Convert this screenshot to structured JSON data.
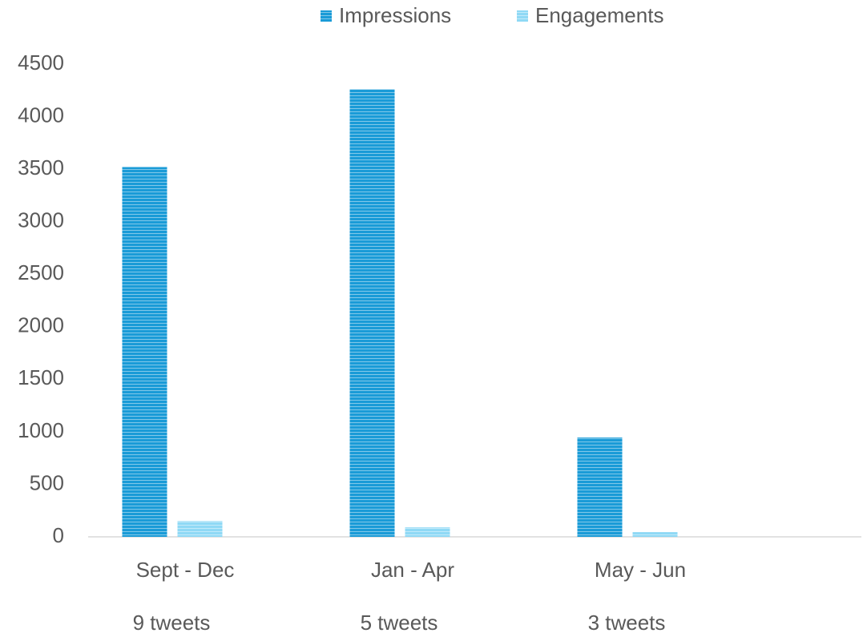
{
  "chart_data": {
    "type": "bar",
    "categories": [
      "Sept - Dec",
      "Jan - Apr",
      "May - Jun"
    ],
    "subcategories": [
      "9 tweets",
      "5 tweets",
      "3 tweets"
    ],
    "series": [
      {
        "name": "Impressions",
        "color": "#1a9bd7",
        "values": [
          3520,
          4260,
          945
        ]
      },
      {
        "name": "Engagements",
        "color": "#8fd9f5",
        "values": [
          150,
          90,
          45
        ]
      }
    ],
    "ylim": [
      0,
      4500
    ],
    "yticks": [
      0,
      500,
      1000,
      1500,
      2000,
      2500,
      3000,
      3500,
      4000,
      4500
    ],
    "legend": "top",
    "grid": false
  }
}
